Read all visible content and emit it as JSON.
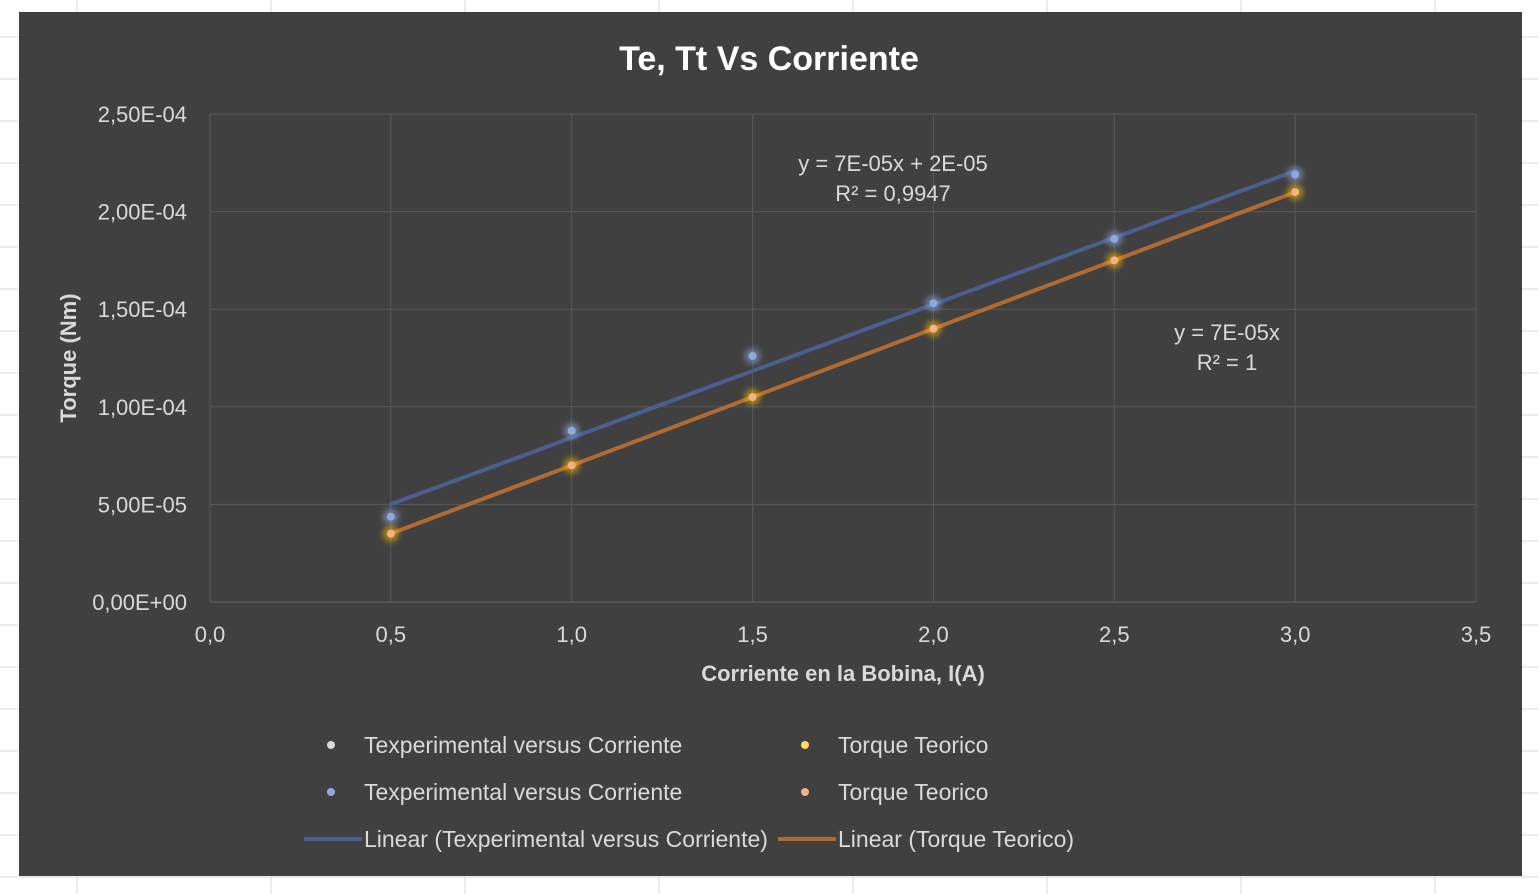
{
  "colors": {
    "background": "#404040",
    "gridline": "#595959",
    "text": "#d9d9d9",
    "title": "#ffffff",
    "experimental_marker": "#8ea9db",
    "teorico_marker": "#f4b183",
    "teorico_glow": "#ffc000",
    "experimental_line": "#4a5e91",
    "teorico_line": "#b06a32",
    "sheet_grid": "#d9d9d9"
  },
  "chart_data": {
    "type": "scatter",
    "title": "Te, Tt Vs Corriente",
    "xlabel": "Corriente en la Bobina, I(A)",
    "ylabel": "Torque (Nm)",
    "xlim": [
      0,
      3.5
    ],
    "ylim": [
      0,
      0.00025
    ],
    "grid": true,
    "legend_position": "bottom",
    "x_ticks": [
      "0,0",
      "0,5",
      "1,0",
      "1,5",
      "2,0",
      "2,5",
      "3,0",
      "3,5"
    ],
    "y_ticks": [
      "0,00E+00",
      "5,00E-05",
      "1,00E-04",
      "1,50E-04",
      "2,00E-04",
      "2,50E-04"
    ],
    "series": [
      {
        "name": "Texperimental versus Corriente",
        "x": [
          0.5,
          1.0,
          1.5,
          2.0,
          2.5,
          3.0
        ],
        "y": [
          4.37e-05,
          8.77e-05,
          0.000126,
          0.000153,
          0.000186,
          0.000219
        ],
        "color": "#8ea9db"
      },
      {
        "name": "Torque Teorico",
        "x": [
          0.5,
          1.0,
          1.5,
          2.0,
          2.5,
          3.0
        ],
        "y": [
          3.5e-05,
          7e-05,
          0.000105,
          0.00014,
          0.000175,
          0.00021
        ],
        "color": "#f4b183"
      }
    ],
    "trendlines": [
      {
        "name": "Linear (Texperimental versus Corriente)",
        "slope": 6.83e-05,
        "intercept": 1.59e-05,
        "x_range": [
          0.5,
          3.0
        ],
        "color": "#4a5e91"
      },
      {
        "name": "Linear (Torque Teorico)",
        "slope": 7e-05,
        "intercept": 0,
        "x_range": [
          0.5,
          3.0
        ],
        "color": "#b06a32"
      }
    ],
    "annotations": [
      {
        "lines": [
          "y = 7E-05x + 2E-05",
          "R² = 0,9947"
        ]
      },
      {
        "lines": [
          "y = 7E-05x",
          "R² = 1"
        ]
      }
    ],
    "legend": [
      {
        "label": "Texperimental versus Corriente",
        "symbol": "marker",
        "color": "#d9d9d9"
      },
      {
        "label": "Torque Teorico",
        "symbol": "marker",
        "color": "#ffd966"
      },
      {
        "label": "Texperimental versus Corriente",
        "symbol": "marker",
        "color": "#8ea9db"
      },
      {
        "label": "Torque Teorico",
        "symbol": "marker",
        "color": "#f4b183"
      },
      {
        "label": "Linear (Texperimental versus Corriente)",
        "symbol": "line",
        "color": "#4a5e91"
      },
      {
        "label": "Linear (Torque Teorico)",
        "symbol": "line",
        "color": "#b06a32"
      }
    ]
  }
}
